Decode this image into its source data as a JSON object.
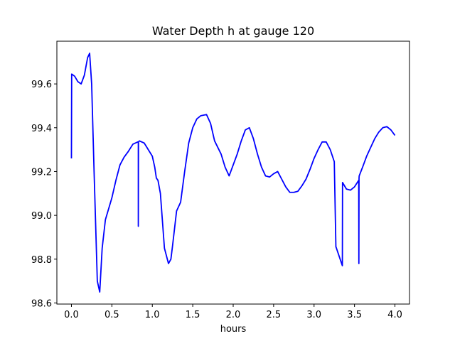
{
  "chart_data": {
    "type": "line",
    "title": "Water Depth h at gauge 120",
    "xlabel": "hours",
    "ylabel": "",
    "xlim": [
      -0.18,
      4.18
    ],
    "ylim": [
      98.595,
      99.795
    ],
    "xticks": [
      0.0,
      0.5,
      1.0,
      1.5,
      2.0,
      2.5,
      3.0,
      3.5,
      4.0
    ],
    "xtick_labels": [
      "0.0",
      "0.5",
      "1.0",
      "1.5",
      "2.0",
      "2.5",
      "3.0",
      "3.5",
      "4.0"
    ],
    "yticks": [
      98.6,
      98.8,
      99.0,
      99.2,
      99.4,
      99.6
    ],
    "ytick_labels": [
      "98.6",
      "98.8",
      "99.0",
      "99.2",
      "99.4",
      "99.6"
    ],
    "grid": false,
    "line_color": "#0000ff",
    "series": [
      {
        "x": [
          0.0,
          0.003,
          0.04,
          0.08,
          0.12,
          0.16,
          0.2,
          0.225,
          0.25,
          0.28,
          0.32,
          0.35,
          0.38,
          0.42,
          0.5,
          0.55,
          0.6,
          0.65,
          0.7,
          0.76,
          0.82,
          0.827,
          0.827,
          0.829,
          0.84,
          0.9,
          0.95,
          1.0,
          1.03,
          1.05,
          1.07,
          1.1,
          1.15,
          1.2,
          1.23,
          1.25,
          1.3,
          1.35,
          1.4,
          1.45,
          1.5,
          1.55,
          1.6,
          1.67,
          1.72,
          1.77,
          1.85,
          1.9,
          1.95,
          2.0,
          2.05,
          2.1,
          2.15,
          2.2,
          2.25,
          2.3,
          2.35,
          2.4,
          2.45,
          2.5,
          2.55,
          2.6,
          2.65,
          2.7,
          2.75,
          2.8,
          2.85,
          2.9,
          2.95,
          3.0,
          3.05,
          3.1,
          3.15,
          3.2,
          3.25,
          3.27,
          3.272,
          3.35,
          3.352,
          3.4,
          3.45,
          3.5,
          3.552,
          3.554,
          3.556,
          3.558,
          3.6,
          3.65,
          3.7,
          3.75,
          3.8,
          3.85,
          3.9,
          3.95,
          4.0
        ],
        "y": [
          99.26,
          99.645,
          99.635,
          99.61,
          99.6,
          99.64,
          99.72,
          99.74,
          99.6,
          99.2,
          98.7,
          98.65,
          98.85,
          98.98,
          99.08,
          99.16,
          99.23,
          99.265,
          99.29,
          99.325,
          99.335,
          99.335,
          98.95,
          99.335,
          99.34,
          99.33,
          99.3,
          99.27,
          99.22,
          99.17,
          99.16,
          99.1,
          98.85,
          98.78,
          98.8,
          98.86,
          99.02,
          99.06,
          99.2,
          99.33,
          99.4,
          99.44,
          99.455,
          99.46,
          99.42,
          99.34,
          99.28,
          99.22,
          99.18,
          99.23,
          99.28,
          99.34,
          99.39,
          99.4,
          99.35,
          99.28,
          99.22,
          99.18,
          99.175,
          99.19,
          99.2,
          99.165,
          99.13,
          99.105,
          99.105,
          99.11,
          99.135,
          99.165,
          99.21,
          99.26,
          99.3,
          99.335,
          99.335,
          99.3,
          99.245,
          98.855,
          98.855,
          98.77,
          99.15,
          99.12,
          99.115,
          99.13,
          99.16,
          98.78,
          99.17,
          99.18,
          99.22,
          99.27,
          99.31,
          99.35,
          99.38,
          99.4,
          99.405,
          99.39,
          99.365
        ]
      }
    ]
  }
}
